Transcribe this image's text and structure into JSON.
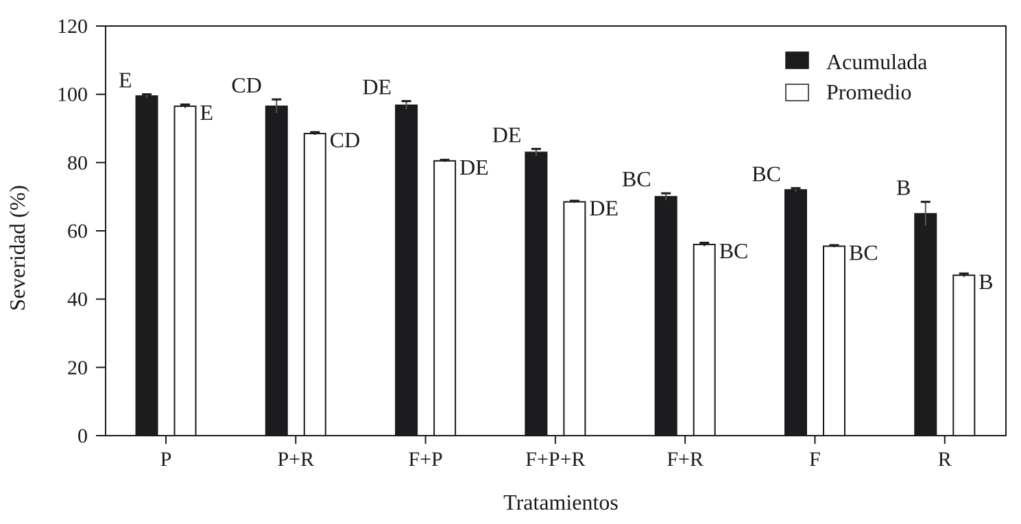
{
  "chart_data": {
    "type": "bar",
    "title": "",
    "xlabel": "Tratamientos",
    "ylabel": "Severidad (%)",
    "ylim": [
      0,
      120
    ],
    "yticks": [
      0,
      20,
      40,
      60,
      80,
      100,
      120
    ],
    "categories": [
      "P",
      "P+R",
      "F+P",
      "F+P+R",
      "F+R",
      "F",
      "R"
    ],
    "legend": {
      "position": "top-right"
    },
    "series": [
      {
        "name": "Acumulada",
        "color": "#1c1c1e",
        "values": [
          99.5,
          96.5,
          96.8,
          83.0,
          70.0,
          72.0,
          65.0
        ],
        "errors": [
          0.5,
          2.0,
          1.2,
          1.0,
          1.0,
          0.5,
          3.5
        ],
        "letters": [
          "E",
          "CD",
          "DE",
          "DE",
          "BC",
          "BC",
          "B"
        ]
      },
      {
        "name": "Promedio",
        "color": "#ffffff",
        "values": [
          96.5,
          88.5,
          80.5,
          68.5,
          56.0,
          55.5,
          47.0
        ],
        "errors": [
          0.5,
          0.4,
          0.3,
          0.3,
          0.5,
          0.3,
          0.5
        ],
        "letters": [
          "E",
          "CD",
          "DE",
          "DE",
          "BC",
          "BC",
          "B"
        ]
      }
    ]
  }
}
